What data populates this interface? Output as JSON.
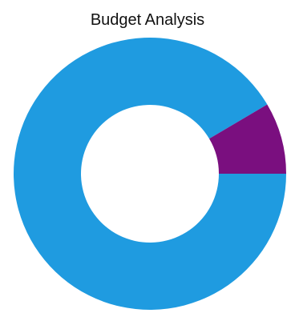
{
  "chart_data": {
    "type": "pie",
    "title": "Budget Analysis",
    "donut": true,
    "slices": [
      {
        "value": 91.5,
        "color": "#1f9be0"
      },
      {
        "value": 8.5,
        "color": "#7a0f7f"
      }
    ]
  }
}
